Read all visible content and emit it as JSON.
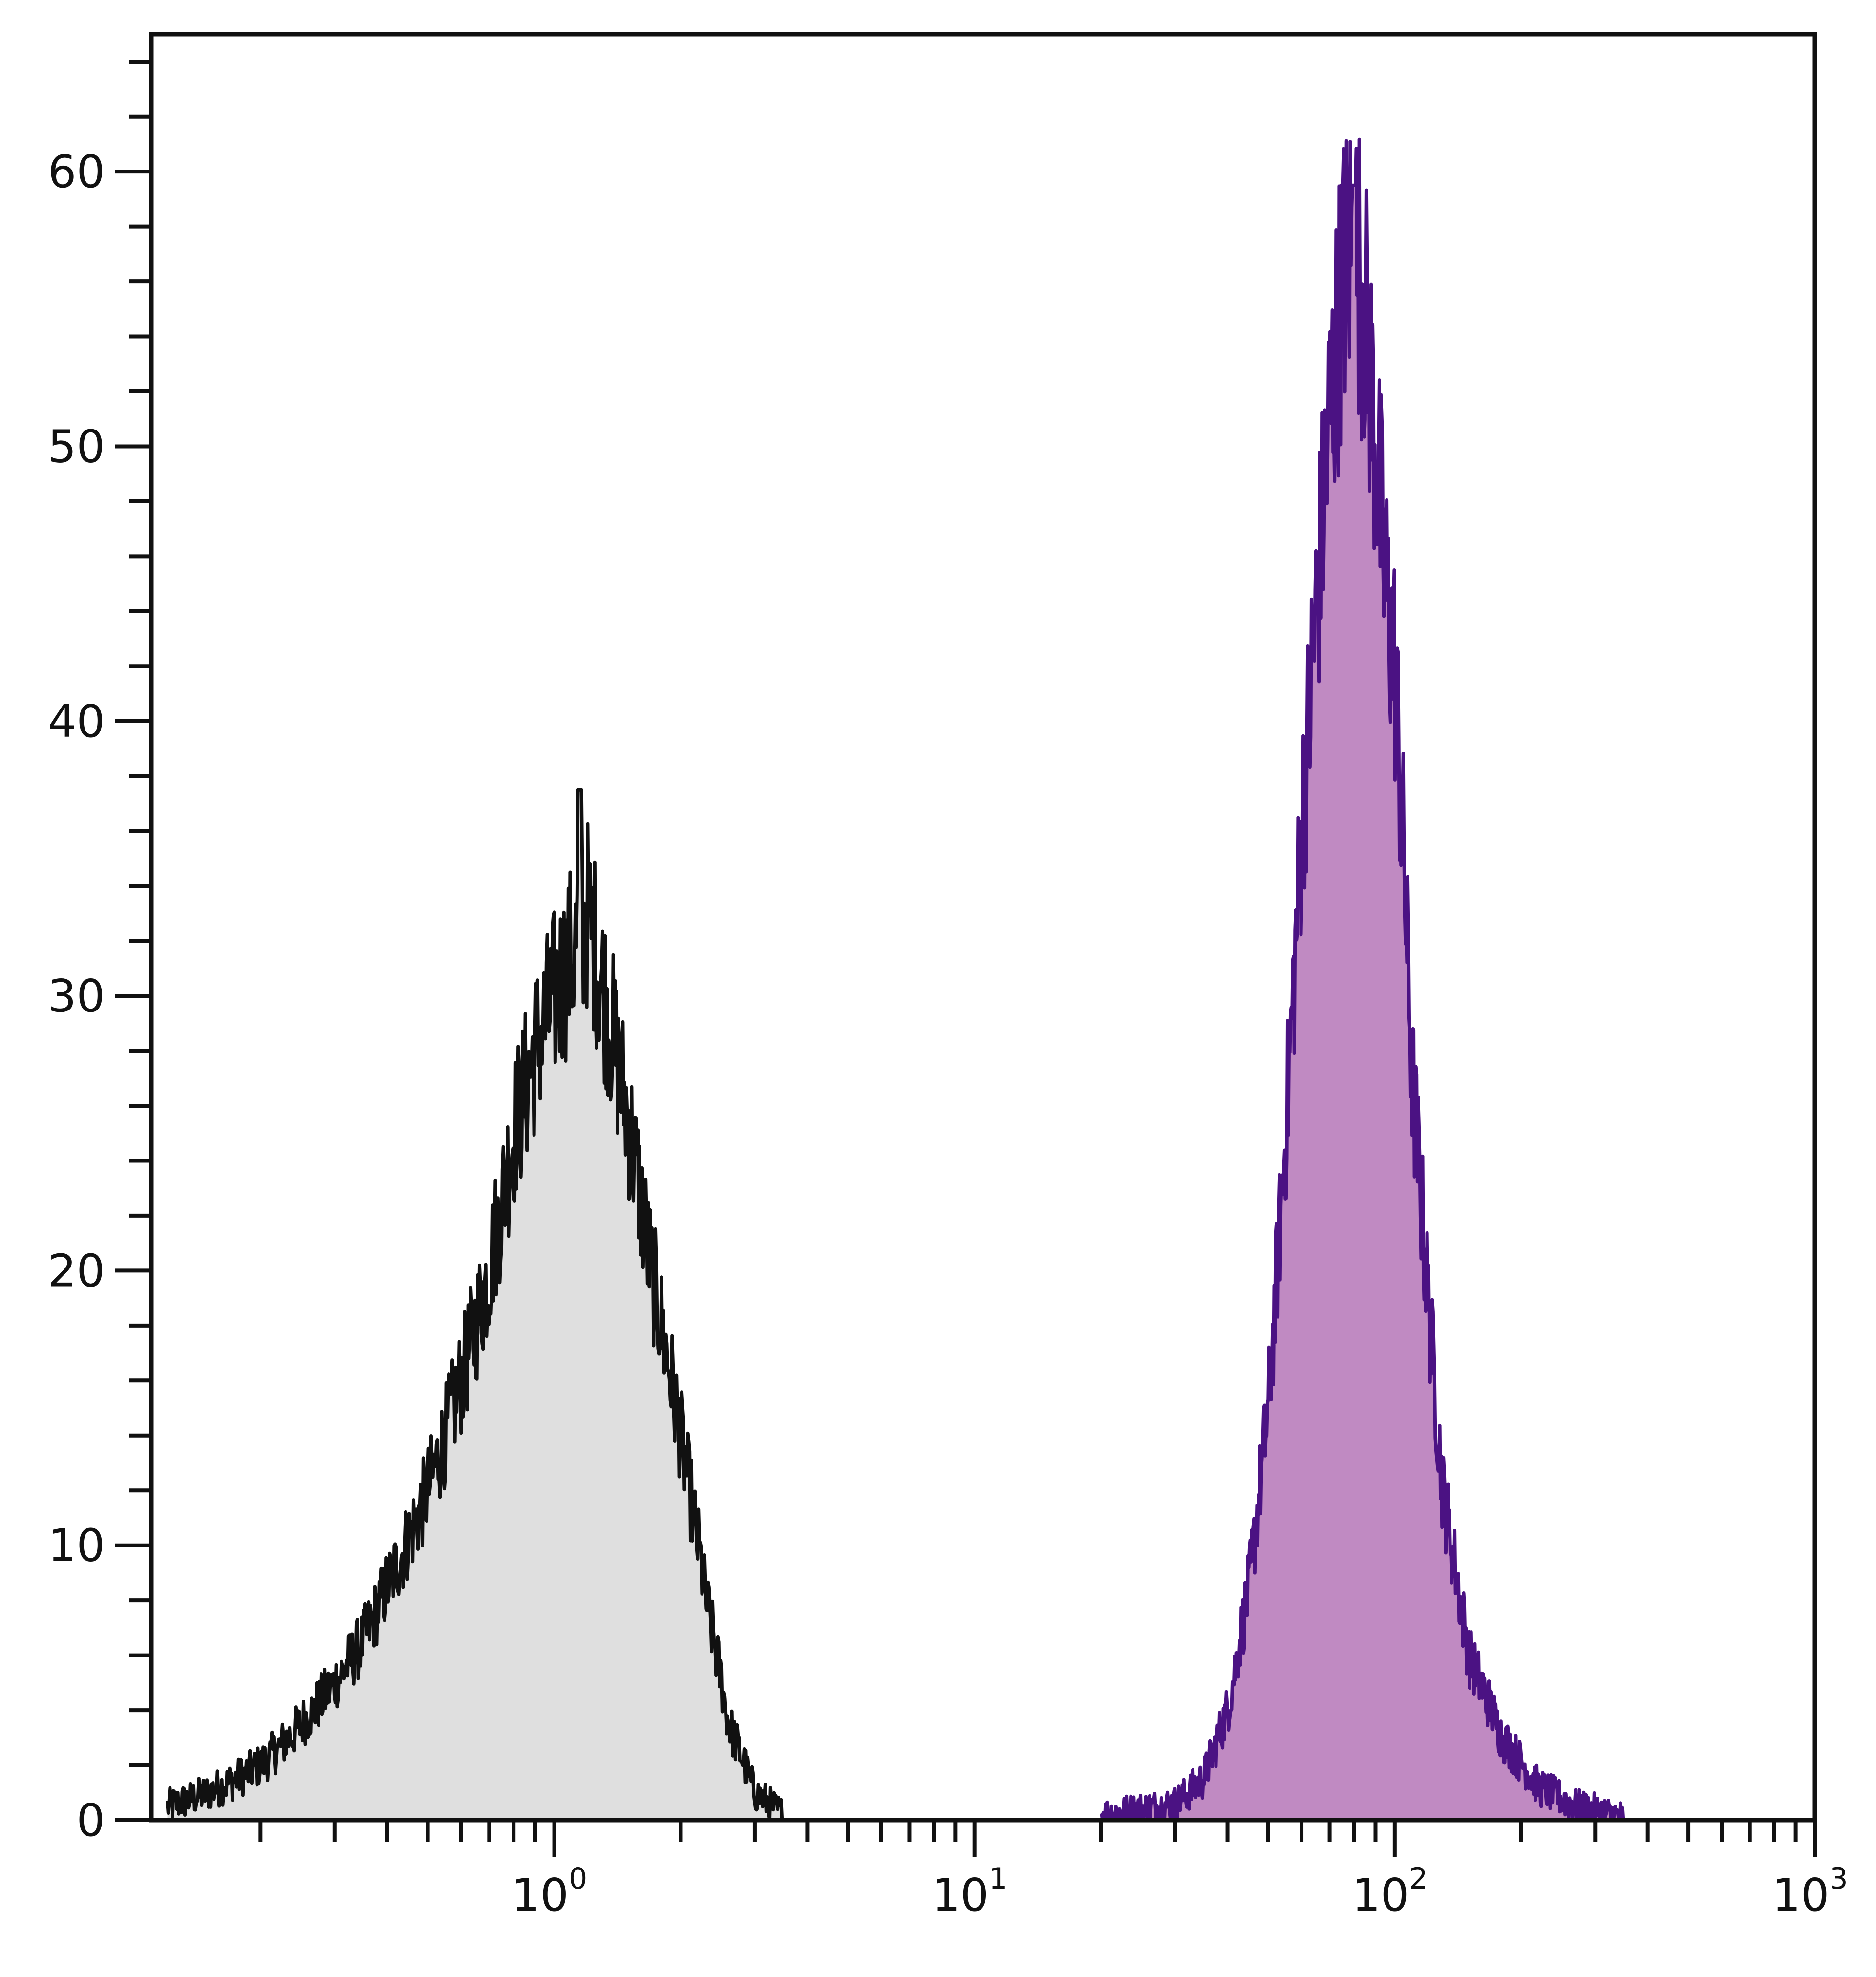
{
  "chart_data": {
    "type": "area",
    "title": "",
    "xlabel": "",
    "ylabel": "",
    "xscale": "log",
    "xlim": [
      0.11,
      1000
    ],
    "ylim": [
      0,
      65
    ],
    "grid": false,
    "legend": "none",
    "y_ticks": [
      0,
      10,
      20,
      30,
      40,
      50,
      60
    ],
    "x_ticks": [
      {
        "value": 1,
        "base": "10",
        "exp": "0"
      },
      {
        "value": 10,
        "base": "10",
        "exp": "1"
      },
      {
        "value": 100,
        "base": "10",
        "exp": "2"
      },
      {
        "value": 1000,
        "base": "10",
        "exp": "3"
      }
    ],
    "series": [
      {
        "role": "control",
        "stroke": "#111111",
        "fill": "#dfdfdf",
        "peak_x": 1.15,
        "peak_y": 37.5,
        "x": [
          0.12,
          0.15,
          0.2,
          0.25,
          0.3,
          0.35,
          0.4,
          0.5,
          0.6,
          0.7,
          0.8,
          0.9,
          1.0,
          1.1,
          1.2,
          1.3,
          1.5,
          1.7,
          2.0,
          2.3,
          2.6,
          3.0,
          3.5
        ],
        "y": [
          0.5,
          1.0,
          2.0,
          3.5,
          5.0,
          6.5,
          8.5,
          12.0,
          16.0,
          20.0,
          25.0,
          28.0,
          30.0,
          31.5,
          33.0,
          30.5,
          25.5,
          20.0,
          14.0,
          8.0,
          3.5,
          1.0,
          0.2
        ]
      },
      {
        "role": "stained",
        "stroke": "#4b1283",
        "fill": "#c08ac2",
        "peak_x": 80,
        "peak_y": 59.5,
        "x": [
          20,
          30,
          35,
          40,
          45,
          50,
          55,
          60,
          65,
          70,
          75,
          80,
          85,
          90,
          95,
          100,
          105,
          110,
          120,
          130,
          150,
          180,
          220,
          270,
          350
        ],
        "y": [
          0.2,
          0.6,
          1.5,
          4.0,
          8.5,
          15.0,
          25.0,
          36.0,
          44.0,
          51.0,
          56.0,
          57.5,
          55.0,
          50.0,
          45.0,
          42.0,
          35.0,
          27.0,
          19.0,
          12.0,
          6.0,
          3.0,
          1.2,
          0.5,
          0.1
        ]
      }
    ]
  }
}
